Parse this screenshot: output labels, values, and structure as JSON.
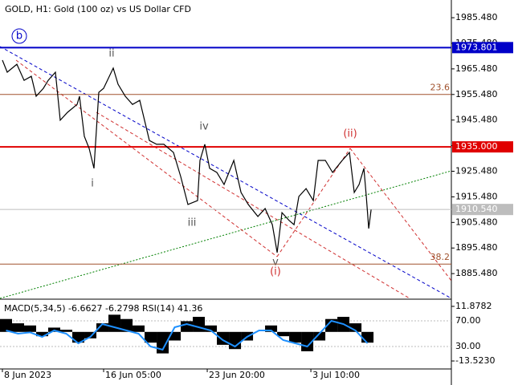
{
  "chart_data": {
    "type": "line",
    "title": "GOLD, H1:  Gold (100 oz) vs US Dollar CFD",
    "xlim": [
      0,
      187.3
    ],
    "xticks": [
      {
        "value": 1,
        "label": "8 Jun 2023"
      },
      {
        "value": 43,
        "label": "16 Jun 05:00"
      },
      {
        "value": 86,
        "label": "23 Jun 20:00"
      },
      {
        "value": 129,
        "label": "3 Jul 10:00"
      }
    ],
    "ylim": [
      1875.8,
      1992.4
    ],
    "yticks": [
      {
        "value": 1885.48,
        "label": "1885.480"
      },
      {
        "value": 1895.48,
        "label": "1895.480"
      },
      {
        "value": 1905.48,
        "label": "1905.480"
      },
      {
        "value": 1915.48,
        "label": "1915.480"
      },
      {
        "value": 1925.48,
        "label": "1925.480"
      },
      {
        "value": 1935.48,
        "label": "1935.480"
      },
      {
        "value": 1945.48,
        "label": "1945.480"
      },
      {
        "value": 1955.48,
        "label": "1955.480"
      },
      {
        "value": 1965.48,
        "label": "1965.480"
      },
      {
        "value": 1975.48,
        "label": "1975.480"
      },
      {
        "value": 1985.48,
        "label": "1985.480"
      }
    ],
    "series": [
      {
        "color": "#000000",
        "x": [
          1,
          3,
          7,
          10,
          13,
          15,
          18,
          20,
          23,
          25,
          28,
          32,
          33,
          35,
          37,
          39,
          41,
          43,
          47,
          49,
          52,
          55,
          58,
          62,
          65,
          68,
          72,
          75,
          78,
          82,
          83,
          85,
          87,
          90,
          93,
          97,
          100,
          103,
          107,
          110,
          113,
          115,
          117,
          120,
          122,
          124,
          127,
          130,
          132,
          135,
          138,
          142,
          145,
          147,
          149,
          151,
          152,
          153,
          154
        ],
        "values": [
          1968.9,
          1964.2,
          1967.3,
          1961.0,
          1962.6,
          1954.8,
          1957.9,
          1961.0,
          1964.2,
          1945.4,
          1948.5,
          1951.6,
          1954.8,
          1939.1,
          1934.4,
          1926.6,
          1956.3,
          1957.9,
          1965.8,
          1959.5,
          1954.8,
          1951.6,
          1953.2,
          1937.5,
          1936.0,
          1936.0,
          1932.8,
          1923.4,
          1912.5,
          1914.0,
          1929.7,
          1936.0,
          1926.6,
          1925.0,
          1920.3,
          1929.7,
          1917.2,
          1912.5,
          1907.8,
          1910.9,
          1904.6,
          1893.7,
          1909.3,
          1906.2,
          1904.6,
          1915.6,
          1918.7,
          1914.0,
          1929.7,
          1929.7,
          1925.0,
          1929.7,
          1932.8,
          1917.2,
          1920.3,
          1926.6,
          1915.6,
          1903.1,
          1910.5
        ]
      }
    ],
    "levels": [
      {
        "value": 1973.801,
        "label": "1973.801",
        "color": "#0000c8"
      },
      {
        "value": 1935.0,
        "label": "1935.000",
        "color": "#e00000"
      },
      {
        "value": 1910.54,
        "label": "1910.540",
        "color": "#bdbdbd"
      }
    ],
    "fib_levels": [
      {
        "name": "23.6",
        "price": 1955.5
      },
      {
        "name": "38.2",
        "price": 1889.2
      }
    ],
    "annotations": [
      "b",
      "ii",
      "i",
      "iv",
      "iii",
      "v",
      "(i)",
      "(ii)"
    ],
    "indicator": {
      "title": "MACD(5,34,5) -6.6627 -6.2798 RSI(14) 41.36",
      "x": [
        0,
        5,
        10,
        15,
        20,
        25,
        30,
        35,
        40,
        45,
        50,
        55,
        60,
        65,
        70,
        75,
        80,
        85,
        90,
        95,
        100,
        105,
        110,
        115,
        120,
        125,
        130,
        135,
        140,
        145,
        150
      ],
      "macd": [
        6,
        4,
        3,
        -2,
        2,
        1,
        -5,
        -3,
        4,
        8,
        6,
        3,
        -5,
        -10,
        -4,
        5,
        7,
        3,
        -6,
        -8,
        -4,
        0,
        3,
        -2,
        -5,
        -9,
        -4,
        6,
        7,
        4,
        -5
      ],
      "rsi": [
        55,
        50,
        52,
        45,
        55,
        50,
        35,
        45,
        65,
        60,
        55,
        50,
        30,
        25,
        60,
        65,
        60,
        55,
        40,
        30,
        45,
        55,
        55,
        40,
        35,
        30,
        50,
        70,
        65,
        55,
        35
      ],
      "macd_ylim": [
        -17.24,
        14.48
      ],
      "rsi_ylim": [
        -5,
        101.25
      ],
      "macd_ticks": [
        {
          "value": 11.8782,
          "label": "11.8782"
        },
        {
          "value": -13.523,
          "label": "-13.5230"
        }
      ],
      "rsi_ticks": [
        {
          "value": 70,
          "label": "70.00"
        },
        {
          "value": 30,
          "label": "30.00"
        }
      ]
    }
  }
}
